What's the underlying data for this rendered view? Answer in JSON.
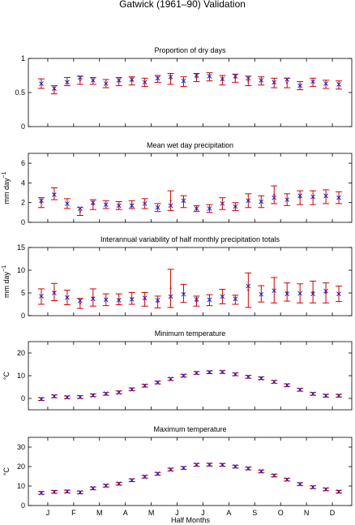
{
  "figure": {
    "title": "Gatwick (1961–90) Validation",
    "xlabel": "Half Months",
    "month_labels": [
      "J",
      "F",
      "M",
      "A",
      "M",
      "J",
      "J",
      "A",
      "S",
      "O",
      "N",
      "D"
    ],
    "colors": {
      "observed": "#cc0000",
      "model": "#2222cc",
      "axes": "#000000"
    }
  },
  "chart_data": [
    {
      "type": "errorbar",
      "title": "Proportion of dry days",
      "ylabel": "",
      "ylim": [
        0,
        1
      ],
      "yticks": [
        0,
        0.5,
        1
      ],
      "x": [
        1,
        2,
        3,
        4,
        5,
        6,
        7,
        8,
        9,
        10,
        11,
        12,
        13,
        14,
        15,
        16,
        17,
        18,
        19,
        20,
        21,
        22,
        23,
        24
      ],
      "observed": {
        "mean": [
          0.63,
          0.54,
          0.66,
          0.68,
          0.67,
          0.63,
          0.66,
          0.67,
          0.65,
          0.7,
          0.7,
          0.66,
          0.72,
          0.73,
          0.68,
          0.71,
          0.67,
          0.67,
          0.64,
          0.64,
          0.6,
          0.65,
          0.62,
          0.61
        ],
        "err": [
          0.07,
          0.06,
          0.06,
          0.06,
          0.05,
          0.06,
          0.06,
          0.06,
          0.06,
          0.05,
          0.08,
          0.07,
          0.06,
          0.06,
          0.07,
          0.06,
          0.07,
          0.06,
          0.07,
          0.07,
          0.06,
          0.06,
          0.06,
          0.06
        ]
      },
      "model": [
        0.63,
        0.56,
        0.65,
        0.72,
        0.68,
        0.63,
        0.68,
        0.69,
        0.65,
        0.71,
        0.73,
        0.67,
        0.75,
        0.74,
        0.7,
        0.74,
        0.71,
        0.68,
        0.65,
        0.69,
        0.6,
        0.66,
        0.63,
        0.62
      ]
    },
    {
      "type": "errorbar",
      "title": "Mean wet day precipitation",
      "ylabel": "mm day",
      "ylabel_sup": "−1",
      "ylim": [
        0,
        7
      ],
      "yticks": [
        0,
        2,
        4,
        6
      ],
      "x": [
        1,
        2,
        3,
        4,
        5,
        6,
        7,
        8,
        9,
        10,
        11,
        12,
        13,
        14,
        15,
        16,
        17,
        18,
        19,
        20,
        21,
        22,
        23,
        24
      ],
      "observed": {
        "mean": [
          2.0,
          2.9,
          1.9,
          1.1,
          1.8,
          1.8,
          1.7,
          1.8,
          1.9,
          1.5,
          2.2,
          2.1,
          1.4,
          1.4,
          1.9,
          1.6,
          2.2,
          2.1,
          2.8,
          2.3,
          2.5,
          2.5,
          2.6,
          2.5
        ],
        "err": [
          0.5,
          0.6,
          0.5,
          0.4,
          0.5,
          0.4,
          0.4,
          0.4,
          0.5,
          0.4,
          1.0,
          0.6,
          0.3,
          0.4,
          0.6,
          0.4,
          0.7,
          0.6,
          0.9,
          0.6,
          0.7,
          0.7,
          0.7,
          0.6
        ]
      },
      "model": [
        2.2,
        2.8,
        1.9,
        1.4,
        2.0,
        1.8,
        1.7,
        1.7,
        1.9,
        1.5,
        1.7,
        2.2,
        1.4,
        1.4,
        1.9,
        1.6,
        2.2,
        2.1,
        2.5,
        2.3,
        2.7,
        2.6,
        2.7,
        2.5
      ]
    },
    {
      "type": "errorbar",
      "title": "Interannual variability of half monthly precipitation totals",
      "ylabel": "mm day",
      "ylabel_sup": "−1",
      "ylim": [
        0,
        15
      ],
      "yticks": [
        0,
        5,
        10,
        15
      ],
      "x": [
        1,
        2,
        3,
        4,
        5,
        6,
        7,
        8,
        9,
        10,
        11,
        12,
        13,
        14,
        15,
        16,
        17,
        18,
        19,
        20,
        21,
        22,
        23,
        24
      ],
      "observed": {
        "mean": [
          4.2,
          5.2,
          4.0,
          2.7,
          4.0,
          3.5,
          3.6,
          3.8,
          3.6,
          3.0,
          6.0,
          4.9,
          3.2,
          3.4,
          4.2,
          3.5,
          5.6,
          4.8,
          5.6,
          5.2,
          4.9,
          5.2,
          5.0,
          4.8
        ],
        "err": [
          1.7,
          1.9,
          1.6,
          1.1,
          1.9,
          1.3,
          1.2,
          1.3,
          1.5,
          1.3,
          4.2,
          2.0,
          1.1,
          1.2,
          1.6,
          1.0,
          3.8,
          1.8,
          2.8,
          2.0,
          2.1,
          2.4,
          2.2,
          1.7
        ]
      },
      "model": [
        4.3,
        5.0,
        4.0,
        3.3,
        3.7,
        3.5,
        3.4,
        3.6,
        3.9,
        3.4,
        4.2,
        4.7,
        3.6,
        3.5,
        4.2,
        3.7,
        6.5,
        4.7,
        5.5,
        4.8,
        4.9,
        4.8,
        5.4,
        4.8
      ]
    },
    {
      "type": "errorbar",
      "title": "Minimum temperature",
      "ylabel": "°C",
      "ylim": [
        -5,
        25
      ],
      "yticks": [
        0,
        10,
        20
      ],
      "x": [
        1,
        2,
        3,
        4,
        5,
        6,
        7,
        8,
        9,
        10,
        11,
        12,
        13,
        14,
        15,
        16,
        17,
        18,
        19,
        20,
        21,
        22,
        23,
        24
      ],
      "observed": {
        "mean": [
          -0.3,
          0.9,
          0.5,
          0.6,
          1.4,
          2.0,
          2.7,
          4.0,
          5.6,
          7.0,
          8.5,
          10.0,
          11.2,
          11.5,
          11.6,
          10.6,
          9.5,
          8.9,
          7.3,
          5.8,
          3.8,
          2.0,
          1.2,
          1.2
        ],
        "err": [
          0.6,
          0.6,
          0.6,
          0.6,
          0.6,
          0.6,
          0.6,
          0.6,
          0.6,
          0.6,
          0.6,
          0.6,
          0.6,
          0.6,
          0.6,
          0.6,
          0.6,
          0.6,
          0.6,
          0.6,
          0.6,
          0.6,
          0.6,
          0.6
        ]
      },
      "model": [
        -0.3,
        1.0,
        0.5,
        0.6,
        1.3,
        2.1,
        2.6,
        4.0,
        5.6,
        7.0,
        8.6,
        10.0,
        11.2,
        11.6,
        11.7,
        10.6,
        9.5,
        8.8,
        7.3,
        5.8,
        3.8,
        2.0,
        1.2,
        1.2
      ]
    },
    {
      "type": "errorbar",
      "title": "Maximum temperature",
      "ylabel": "°C",
      "ylim": [
        0,
        35
      ],
      "yticks": [
        0,
        10,
        20,
        30
      ],
      "x": [
        1,
        2,
        3,
        4,
        5,
        6,
        7,
        8,
        9,
        10,
        11,
        12,
        13,
        14,
        15,
        16,
        17,
        18,
        19,
        20,
        21,
        22,
        23,
        24
      ],
      "observed": {
        "mean": [
          6.5,
          7.0,
          7.2,
          6.7,
          8.8,
          10.2,
          11.2,
          13.0,
          14.8,
          16.3,
          18.5,
          19.3,
          20.9,
          21.0,
          20.9,
          20.0,
          19.0,
          17.5,
          15.4,
          13.3,
          11.0,
          9.4,
          8.3,
          7.1
        ],
        "err": [
          0.7,
          0.7,
          0.7,
          0.7,
          0.7,
          0.7,
          0.7,
          0.7,
          0.7,
          0.7,
          0.7,
          0.7,
          0.7,
          0.7,
          0.7,
          0.7,
          0.7,
          0.7,
          0.7,
          0.7,
          0.7,
          0.7,
          0.7,
          0.7
        ]
      },
      "model": [
        6.4,
        7.0,
        7.2,
        6.8,
        8.9,
        10.2,
        11.2,
        13.0,
        14.8,
        16.3,
        18.5,
        19.3,
        21.0,
        21.0,
        20.9,
        20.0,
        19.1,
        17.6,
        15.4,
        13.3,
        11.0,
        9.4,
        8.3,
        7.1
      ]
    }
  ]
}
